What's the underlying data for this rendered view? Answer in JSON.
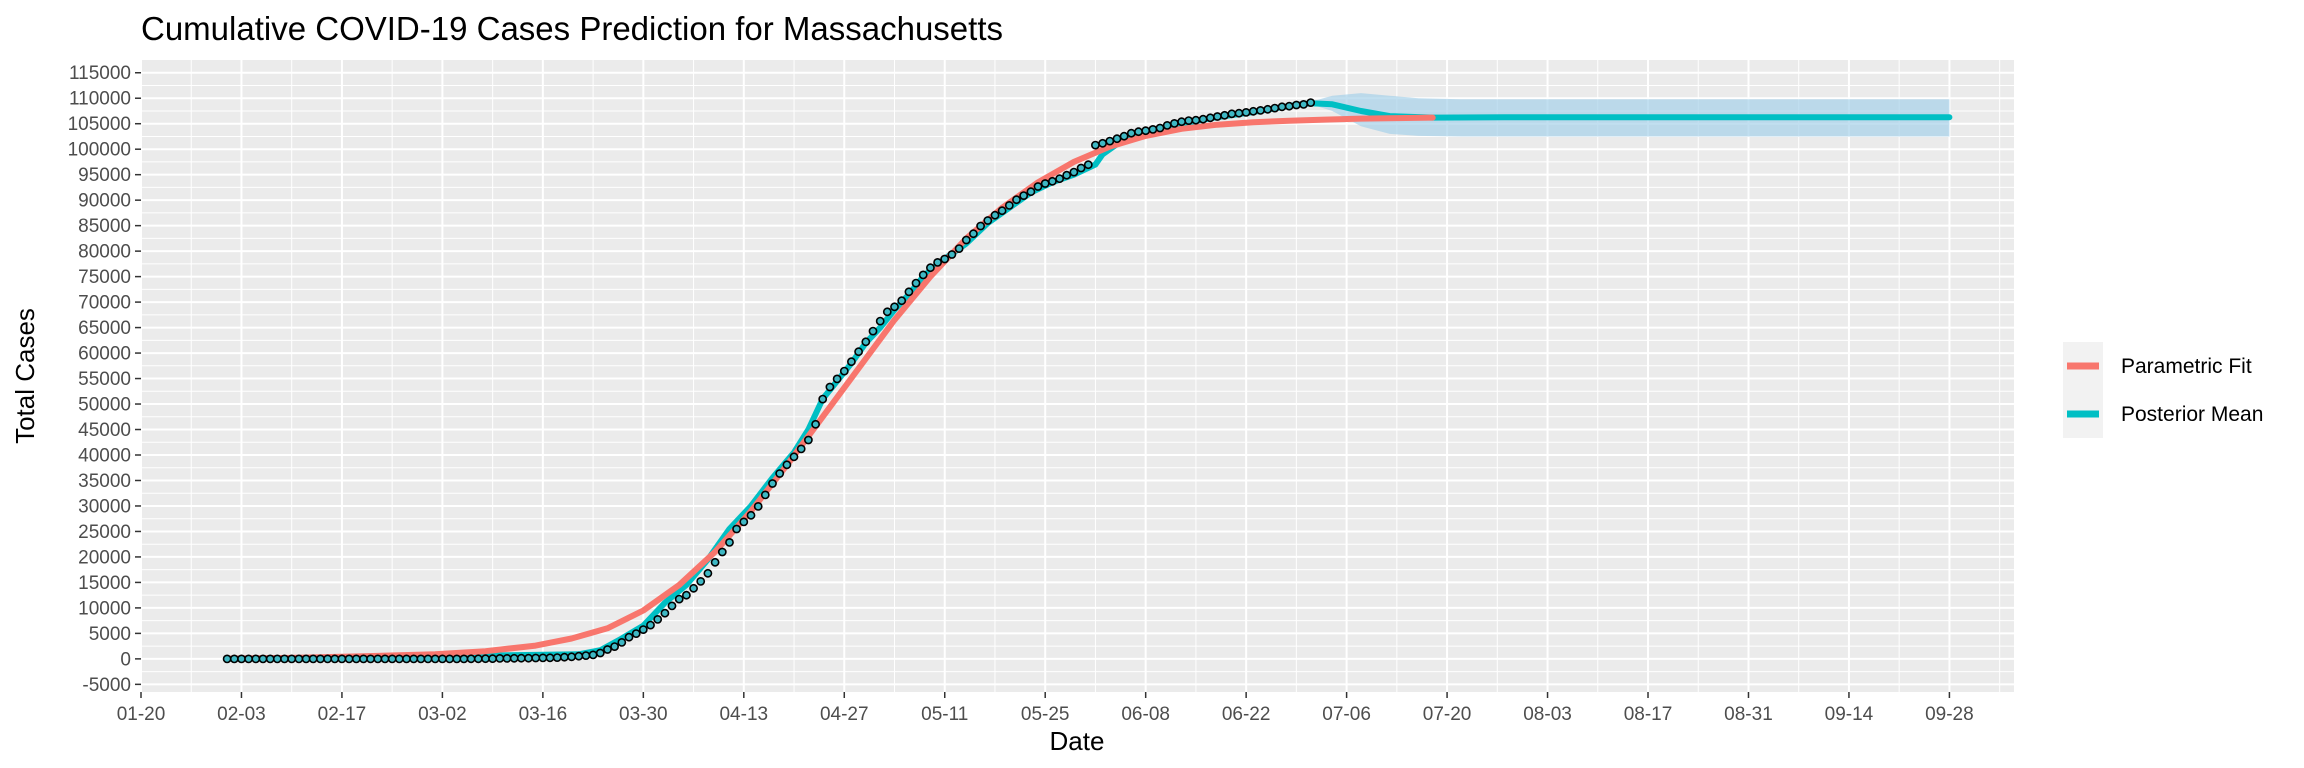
{
  "chart_data": {
    "type": "line",
    "title": "Cumulative COVID-19 Cases Prediction for Massachusetts",
    "xlabel": "Date",
    "ylabel": "Total Cases",
    "x_tick_labels": [
      "01-20",
      "02-03",
      "02-17",
      "03-02",
      "03-16",
      "03-30",
      "04-13",
      "04-27",
      "05-11",
      "05-25",
      "06-08",
      "06-22",
      "07-06",
      "07-20",
      "08-03",
      "08-17",
      "08-31",
      "09-14",
      "09-28"
    ],
    "x_tick_dates": [
      "2020-01-20",
      "2020-02-03",
      "2020-02-17",
      "2020-03-02",
      "2020-03-16",
      "2020-03-30",
      "2020-04-13",
      "2020-04-27",
      "2020-05-11",
      "2020-05-25",
      "2020-06-08",
      "2020-06-22",
      "2020-07-06",
      "2020-07-20",
      "2020-08-03",
      "2020-08-17",
      "2020-08-31",
      "2020-09-14",
      "2020-09-28"
    ],
    "xlim": [
      "2020-01-20",
      "2020-10-07"
    ],
    "y_ticks": [
      -5000,
      0,
      5000,
      10000,
      15000,
      20000,
      25000,
      30000,
      35000,
      40000,
      45000,
      50000,
      55000,
      60000,
      65000,
      70000,
      75000,
      80000,
      85000,
      90000,
      95000,
      100000,
      105000,
      110000,
      115000
    ],
    "y_tick_labels": [
      "-5000",
      "0",
      "5000",
      "10000",
      "15000",
      "20000",
      "25000",
      "30000",
      "35000",
      "40000",
      "45000",
      "50000",
      "55000",
      "60000",
      "65000",
      "70000",
      "75000",
      "80000",
      "85000",
      "90000",
      "95000",
      "100000",
      "105000",
      "110000",
      "115000"
    ],
    "ylim": [
      -6500,
      117500
    ],
    "grid": true,
    "legend_position": "right",
    "colors": {
      "panel": "#ebebeb",
      "grid": "#ffffff",
      "parametric": "#f8766d",
      "posterior": "#00bfc4",
      "band": "#a6d2ea",
      "points_fill": "#3fb8c4",
      "points_edge": "#000000"
    },
    "legend": [
      {
        "name": "Parametric Fit",
        "color": "#f8766d"
      },
      {
        "name": "Posterior Mean",
        "color": "#00bfc4"
      }
    ],
    "series": [
      {
        "name": "Parametric Fit",
        "kind": "line",
        "points": [
          [
            "2020-02-01",
            50
          ],
          [
            "2020-02-10",
            200
          ],
          [
            "2020-02-20",
            500
          ],
          [
            "2020-03-01",
            900
          ],
          [
            "2020-03-08",
            1500
          ],
          [
            "2020-03-15",
            2600
          ],
          [
            "2020-03-20",
            4000
          ],
          [
            "2020-03-25",
            6000
          ],
          [
            "2020-03-30",
            9500
          ],
          [
            "2020-04-04",
            14500
          ],
          [
            "2020-04-09",
            21000
          ],
          [
            "2020-04-14",
            29000
          ],
          [
            "2020-04-19",
            38000
          ],
          [
            "2020-04-24",
            47500
          ],
          [
            "2020-04-29",
            57000
          ],
          [
            "2020-05-04",
            66500
          ],
          [
            "2020-05-09",
            75000
          ],
          [
            "2020-05-14",
            82500
          ],
          [
            "2020-05-19",
            88500
          ],
          [
            "2020-05-24",
            93500
          ],
          [
            "2020-05-29",
            97500
          ],
          [
            "2020-06-03",
            100500
          ],
          [
            "2020-06-08",
            102600
          ],
          [
            "2020-06-13",
            104000
          ],
          [
            "2020-06-18",
            104800
          ],
          [
            "2020-06-23",
            105300
          ],
          [
            "2020-06-28",
            105600
          ],
          [
            "2020-07-03",
            105800
          ],
          [
            "2020-07-08",
            106000
          ],
          [
            "2020-07-13",
            106100
          ],
          [
            "2020-07-18",
            106200
          ]
        ]
      },
      {
        "name": "Posterior Mean",
        "kind": "line",
        "points": [
          [
            "2020-02-01",
            0
          ],
          [
            "2020-03-21",
            900
          ],
          [
            "2020-03-24",
            1700
          ],
          [
            "2020-03-27",
            4000
          ],
          [
            "2020-03-30",
            6500
          ],
          [
            "2020-04-02",
            11000
          ],
          [
            "2020-04-05",
            14500
          ],
          [
            "2020-04-08",
            19500
          ],
          [
            "2020-04-11",
            25500
          ],
          [
            "2020-04-14",
            30000
          ],
          [
            "2020-04-17",
            35500
          ],
          [
            "2020-04-20",
            40500
          ],
          [
            "2020-04-22",
            45000
          ],
          [
            "2020-04-24",
            51000
          ],
          [
            "2020-04-26",
            54500
          ],
          [
            "2020-04-28",
            58000
          ],
          [
            "2020-04-30",
            62000
          ],
          [
            "2020-05-02",
            65000
          ],
          [
            "2020-05-04",
            68500
          ],
          [
            "2020-05-06",
            71500
          ],
          [
            "2020-05-08",
            75000
          ],
          [
            "2020-05-10",
            77500
          ],
          [
            "2020-05-14",
            81500
          ],
          [
            "2020-05-17",
            85500
          ],
          [
            "2020-05-20",
            88500
          ],
          [
            "2020-05-23",
            91500
          ],
          [
            "2020-05-26",
            93500
          ],
          [
            "2020-05-29",
            95000
          ],
          [
            "2020-06-01",
            97000
          ],
          [
            "2020-06-02",
            99000
          ],
          [
            "2020-06-05",
            102000
          ],
          [
            "2020-06-08",
            103500
          ],
          [
            "2020-06-13",
            105000
          ],
          [
            "2020-06-18",
            106300
          ],
          [
            "2020-06-23",
            107300
          ],
          [
            "2020-06-28",
            108500
          ],
          [
            "2020-07-01",
            109000
          ],
          [
            "2020-07-04",
            108800
          ],
          [
            "2020-07-08",
            107500
          ],
          [
            "2020-07-12",
            106500
          ],
          [
            "2020-07-18",
            106200
          ],
          [
            "2020-07-28",
            106250
          ],
          [
            "2020-09-28",
            106250
          ]
        ]
      },
      {
        "name": "Observed",
        "kind": "points",
        "points": [
          [
            "2020-02-01",
            1
          ],
          [
            "2020-02-02",
            1
          ],
          [
            "2020-02-03",
            1
          ],
          [
            "2020-02-04",
            1
          ],
          [
            "2020-02-05",
            1
          ],
          [
            "2020-02-06",
            1
          ],
          [
            "2020-02-07",
            1
          ],
          [
            "2020-02-08",
            1
          ],
          [
            "2020-02-09",
            1
          ],
          [
            "2020-02-10",
            1
          ],
          [
            "2020-02-11",
            1
          ],
          [
            "2020-02-12",
            1
          ],
          [
            "2020-02-13",
            1
          ],
          [
            "2020-02-14",
            1
          ],
          [
            "2020-02-15",
            1
          ],
          [
            "2020-02-16",
            1
          ],
          [
            "2020-02-17",
            1
          ],
          [
            "2020-02-18",
            1
          ],
          [
            "2020-02-19",
            1
          ],
          [
            "2020-02-20",
            1
          ],
          [
            "2020-02-21",
            1
          ],
          [
            "2020-02-22",
            1
          ],
          [
            "2020-02-23",
            1
          ],
          [
            "2020-02-24",
            1
          ],
          [
            "2020-02-25",
            1
          ],
          [
            "2020-02-26",
            1
          ],
          [
            "2020-02-27",
            1
          ],
          [
            "2020-02-28",
            1
          ],
          [
            "2020-02-29",
            1
          ],
          [
            "2020-03-01",
            1
          ],
          [
            "2020-03-02",
            1
          ],
          [
            "2020-03-03",
            2
          ],
          [
            "2020-03-04",
            2
          ],
          [
            "2020-03-05",
            2
          ],
          [
            "2020-03-06",
            8
          ],
          [
            "2020-03-07",
            13
          ],
          [
            "2020-03-08",
            28
          ],
          [
            "2020-03-09",
            41
          ],
          [
            "2020-03-10",
            92
          ],
          [
            "2020-03-11",
            95
          ],
          [
            "2020-03-12",
            108
          ],
          [
            "2020-03-13",
            123
          ],
          [
            "2020-03-14",
            138
          ],
          [
            "2020-03-15",
            164
          ],
          [
            "2020-03-16",
            197
          ],
          [
            "2020-03-17",
            218
          ],
          [
            "2020-03-18",
            256
          ],
          [
            "2020-03-19",
            328
          ],
          [
            "2020-03-20",
            413
          ],
          [
            "2020-03-21",
            525
          ],
          [
            "2020-03-22",
            646
          ],
          [
            "2020-03-23",
            777
          ],
          [
            "2020-03-24",
            1159
          ],
          [
            "2020-03-25",
            1838
          ],
          [
            "2020-03-26",
            2417
          ],
          [
            "2020-03-27",
            3240
          ],
          [
            "2020-03-28",
            4257
          ],
          [
            "2020-03-29",
            4955
          ],
          [
            "2020-03-30",
            5752
          ],
          [
            "2020-03-31",
            6620
          ],
          [
            "2020-04-01",
            7738
          ],
          [
            "2020-04-02",
            8966
          ],
          [
            "2020-04-03",
            10402
          ],
          [
            "2020-04-04",
            11736
          ],
          [
            "2020-04-05",
            12500
          ],
          [
            "2020-04-06",
            13837
          ],
          [
            "2020-04-07",
            15202
          ],
          [
            "2020-04-08",
            16790
          ],
          [
            "2020-04-09",
            18941
          ],
          [
            "2020-04-10",
            20974
          ],
          [
            "2020-04-11",
            22860
          ],
          [
            "2020-04-12",
            25475
          ],
          [
            "2020-04-13",
            26867
          ],
          [
            "2020-04-14",
            28163
          ],
          [
            "2020-04-15",
            29918
          ],
          [
            "2020-04-16",
            32181
          ],
          [
            "2020-04-17",
            34402
          ],
          [
            "2020-04-18",
            36372
          ],
          [
            "2020-04-19",
            38077
          ],
          [
            "2020-04-20",
            39643
          ],
          [
            "2020-04-21",
            41199
          ],
          [
            "2020-04-22",
            42944
          ],
          [
            "2020-04-23",
            46023
          ],
          [
            "2020-04-24",
            50969
          ],
          [
            "2020-04-25",
            53348
          ],
          [
            "2020-04-26",
            54938
          ],
          [
            "2020-04-27",
            56462
          ],
          [
            "2020-04-28",
            58302
          ],
          [
            "2020-04-29",
            60265
          ],
          [
            "2020-04-30",
            62205
          ],
          [
            "2020-05-01",
            64311
          ],
          [
            "2020-05-02",
            66263
          ],
          [
            "2020-05-03",
            68087
          ],
          [
            "2020-05-04",
            69087
          ],
          [
            "2020-05-05",
            70271
          ],
          [
            "2020-05-06",
            72025
          ],
          [
            "2020-05-07",
            73721
          ],
          [
            "2020-05-08",
            75333
          ],
          [
            "2020-05-09",
            76743
          ],
          [
            "2020-05-10",
            77793
          ],
          [
            "2020-05-11",
            78462
          ],
          [
            "2020-05-12",
            79332
          ],
          [
            "2020-05-13",
            80497
          ],
          [
            "2020-05-14",
            82182
          ],
          [
            "2020-05-15",
            83421
          ],
          [
            "2020-05-16",
            84933
          ],
          [
            "2020-05-17",
            86010
          ],
          [
            "2020-05-18",
            87052
          ],
          [
            "2020-05-19",
            87925
          ],
          [
            "2020-05-20",
            88970
          ],
          [
            "2020-05-21",
            90084
          ],
          [
            "2020-05-22",
            90889
          ],
          [
            "2020-05-23",
            91662
          ],
          [
            "2020-05-24",
            92675
          ],
          [
            "2020-05-25",
            93271
          ],
          [
            "2020-05-26",
            93693
          ],
          [
            "2020-05-27",
            94220
          ],
          [
            "2020-05-28",
            94895
          ],
          [
            "2020-05-29",
            95512
          ],
          [
            "2020-05-30",
            96301
          ],
          [
            "2020-05-31",
            96965
          ],
          [
            "2020-06-01",
            100805
          ],
          [
            "2020-06-02",
            101163
          ],
          [
            "2020-06-03",
            101592
          ],
          [
            "2020-06-04",
            102063
          ],
          [
            "2020-06-05",
            102557
          ],
          [
            "2020-06-06",
            103132
          ],
          [
            "2020-06-07",
            103436
          ],
          [
            "2020-06-08",
            103626
          ],
          [
            "2020-06-09",
            103889
          ],
          [
            "2020-06-10",
            104156
          ],
          [
            "2020-06-11",
            104667
          ],
          [
            "2020-06-12",
            105059
          ],
          [
            "2020-06-13",
            105395
          ],
          [
            "2020-06-14",
            105603
          ],
          [
            "2020-06-15",
            105690
          ],
          [
            "2020-06-16",
            105885
          ],
          [
            "2020-06-17",
            106151
          ],
          [
            "2020-06-18",
            106422
          ],
          [
            "2020-06-19",
            106650
          ],
          [
            "2020-06-20",
            106936
          ],
          [
            "2020-06-21",
            107061
          ],
          [
            "2020-06-22",
            107210
          ],
          [
            "2020-06-23",
            107439
          ],
          [
            "2020-06-24",
            107611
          ],
          [
            "2020-06-25",
            107837
          ],
          [
            "2020-06-26",
            108070
          ],
          [
            "2020-06-27",
            108311
          ],
          [
            "2020-06-28",
            108443
          ],
          [
            "2020-06-29",
            108667
          ],
          [
            "2020-06-30",
            108783
          ],
          [
            "2020-07-01",
            109143
          ]
        ]
      }
    ],
    "band": {
      "name": "Posterior Interval",
      "points": [
        [
          "2020-07-01",
          109300,
          108800
        ],
        [
          "2020-07-04",
          110500,
          107500
        ],
        [
          "2020-07-08",
          111000,
          104500
        ],
        [
          "2020-07-12",
          110500,
          103000
        ],
        [
          "2020-07-16",
          110000,
          102600
        ],
        [
          "2020-07-22",
          109800,
          102500
        ],
        [
          "2020-08-15",
          109800,
          102500
        ],
        [
          "2020-09-28",
          109800,
          102500
        ]
      ]
    }
  }
}
